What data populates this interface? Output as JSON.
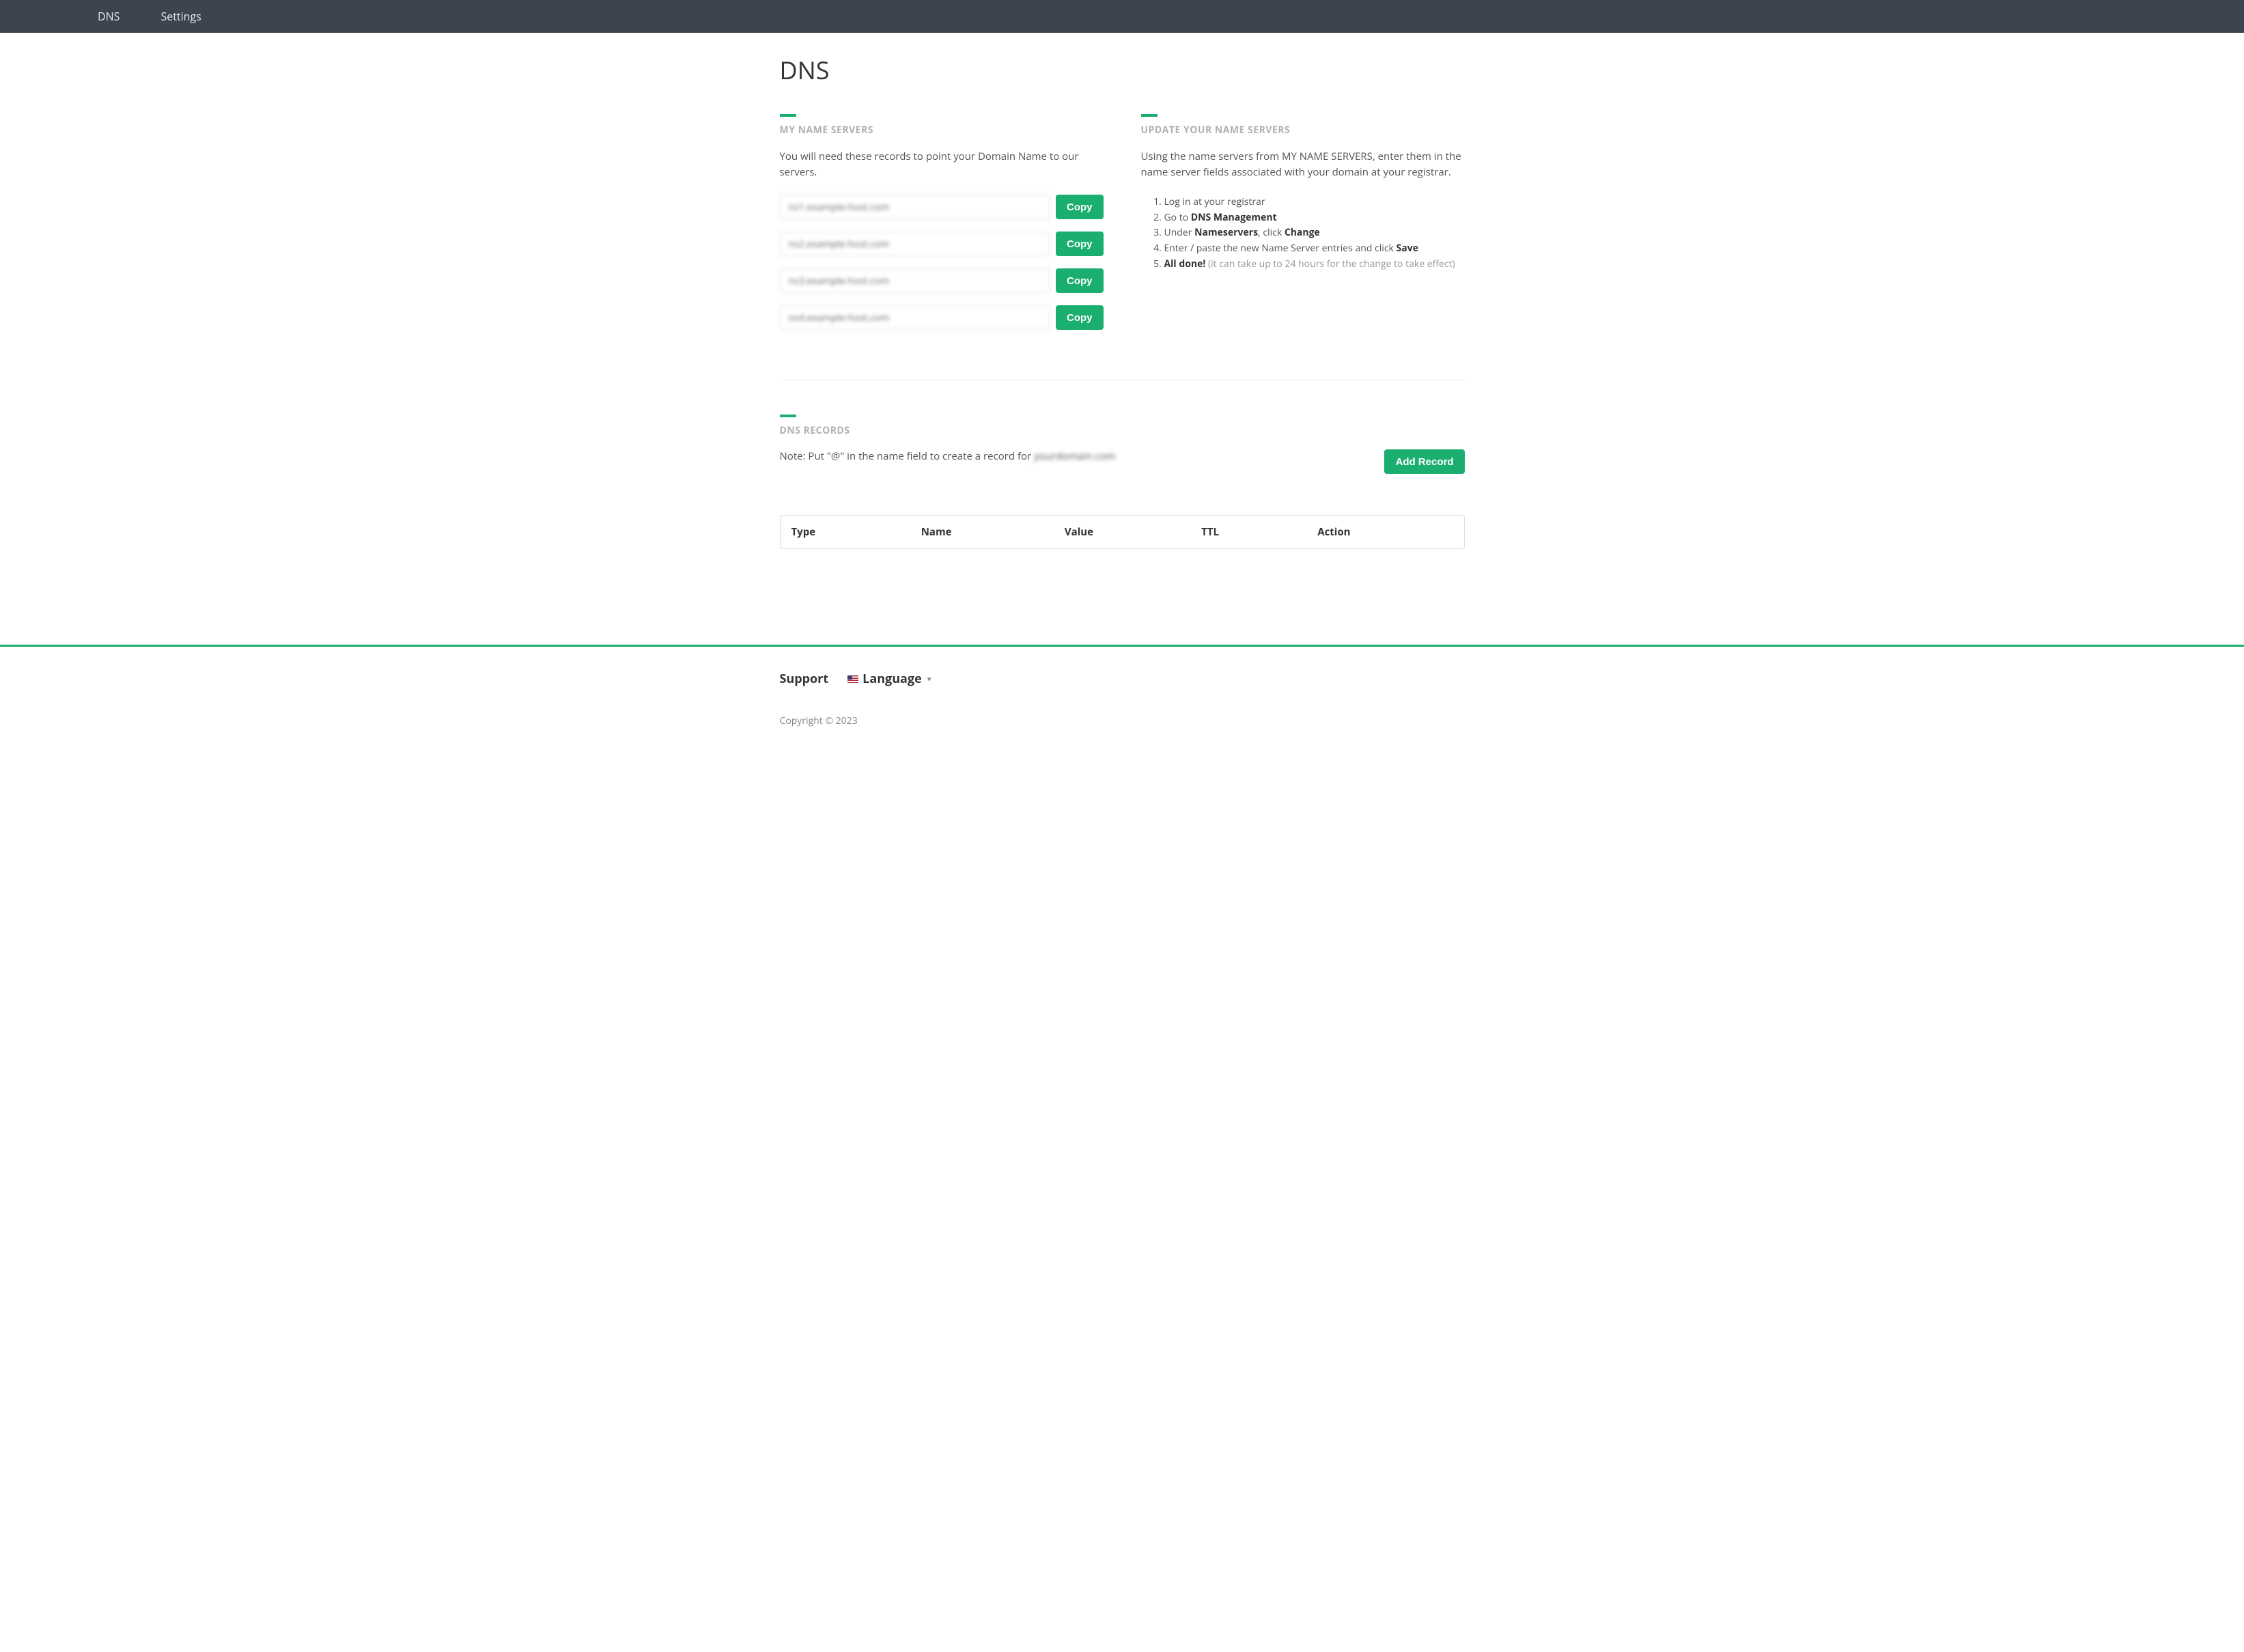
{
  "colors": {
    "navbar_bg": "#3b444f",
    "accent": "#1aae6f",
    "section_title": "#b0b0b0",
    "text": "#333333",
    "muted": "#888888",
    "border": "#dddddd"
  },
  "nav": {
    "items": [
      {
        "label": "DNS"
      },
      {
        "label": "Settings"
      }
    ]
  },
  "page": {
    "title": "DNS"
  },
  "nameservers": {
    "title": "MY NAME SERVERS",
    "description": "You will need these records to point your Domain Name to our servers.",
    "copy_label": "Copy",
    "servers": [
      {
        "value": "ns1.example-host.com"
      },
      {
        "value": "ns2.example-host.com"
      },
      {
        "value": "ns3.example-host.com"
      },
      {
        "value": "ns4.example-host.com"
      }
    ]
  },
  "update": {
    "title": "UPDATE YOUR NAME SERVERS",
    "description": "Using the name servers from MY NAME SERVERS, enter them in the name server fields associated with your domain at your registrar.",
    "steps": {
      "s1": "Log in at your registrar",
      "s2_pre": "Go to ",
      "s2_bold": "DNS Management",
      "s3_pre": "Under ",
      "s3_bold1": "Nameservers",
      "s3_mid": ", click ",
      "s3_bold2": "Change",
      "s4_pre": "Enter / paste the new Name Server entries and click ",
      "s4_bold": "Save",
      "s5_bold": "All done!",
      "s5_rest": " (it can take up to 24 hours for the change to take effect)"
    }
  },
  "records": {
    "title": "DNS RECORDS",
    "note_prefix": "Note: Put \"@\" in the name field to create a record for ",
    "note_domain": "yourdomain.com",
    "add_label": "Add Record",
    "columns": [
      "Type",
      "Name",
      "Value",
      "TTL",
      "Action"
    ],
    "rows": []
  },
  "footer": {
    "support": "Support",
    "language": "Language",
    "copyright": "Copyright © 2023"
  }
}
